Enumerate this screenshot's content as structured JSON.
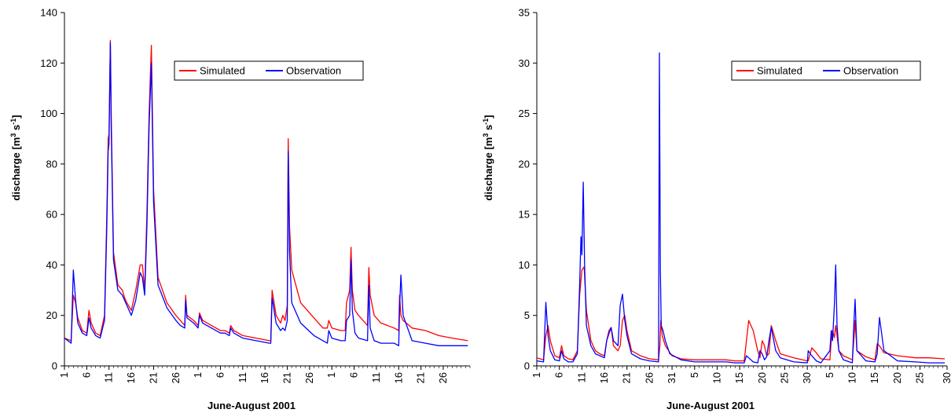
{
  "colors": {
    "simulated": "#ff0000",
    "observation": "#0000ff",
    "axis": "#000000"
  },
  "chart_data": [
    {
      "type": "line",
      "xlabel": "June-August 2001",
      "ylabel": "discharge [m³ s⁻¹]",
      "ylabel_parts": {
        "main": "discharge [m",
        "sup1": "3",
        "mid": " s",
        "sup2": "-1",
        "end": "]"
      },
      "ylim": [
        0,
        140
      ],
      "yticks": [
        0,
        20,
        40,
        60,
        80,
        100,
        120,
        140
      ],
      "xlim": [
        1,
        92
      ],
      "xtick_positions": [
        1,
        6,
        11,
        16,
        21,
        26,
        31,
        36,
        41,
        46,
        51,
        56,
        61,
        66,
        71,
        76,
        81,
        86
      ],
      "xtick_labels": [
        "1",
        "6",
        "11",
        "16",
        "21",
        "26",
        "1",
        "6",
        "11",
        "16",
        "21",
        "26",
        "1",
        "6",
        "11",
        "16",
        "21",
        "26"
      ],
      "legend": {
        "position": "top-right-center",
        "entries": [
          "Simulated",
          "Observation"
        ]
      },
      "grid": false,
      "series": [
        {
          "name": "Simulated",
          "color": "#ff0000",
          "x": [
            1,
            2.5,
            3,
            3.5,
            4,
            5,
            6,
            6.5,
            7,
            8,
            9,
            10,
            10.5,
            10.8,
            11,
            11.3,
            11.5,
            12,
            13,
            14,
            14.5,
            15,
            16,
            17,
            18,
            18.5,
            19,
            19.5,
            20,
            20.5,
            21,
            22,
            24,
            26,
            27,
            28,
            28.2,
            28.5,
            30,
            31,
            31.3,
            32,
            34,
            36,
            37,
            38,
            38.3,
            39,
            41,
            44,
            47,
            47.3,
            47.6,
            48.5,
            49.5,
            50,
            50.5,
            51,
            51.2,
            51.5,
            52,
            54,
            57,
            59,
            60,
            60.3,
            61,
            63,
            64,
            64.3,
            65,
            65.3,
            65.6,
            66.2,
            67,
            69,
            69.3,
            69.6,
            70.5,
            72,
            75,
            76,
            76.2,
            76.5,
            77,
            79,
            82,
            85,
            88,
            91.5
          ],
          "y": [
            11,
            10,
            28,
            25,
            19,
            14,
            13,
            22,
            17,
            13,
            12,
            20,
            60,
            90,
            92,
            129,
            100,
            45,
            32,
            30,
            27,
            25,
            22,
            30,
            40,
            40,
            30,
            60,
            100,
            127,
            70,
            35,
            25,
            20,
            18,
            16,
            28,
            20,
            18,
            16,
            21,
            18,
            16,
            14,
            14,
            13,
            16,
            14,
            12,
            11,
            10,
            10,
            30,
            20,
            17,
            20,
            18,
            24,
            90,
            55,
            38,
            25,
            19,
            15,
            15,
            18,
            15,
            14,
            14,
            25,
            30,
            47,
            30,
            22,
            20,
            16,
            39,
            28,
            20,
            17,
            15,
            14,
            28,
            20,
            18,
            15,
            14,
            12,
            11,
            10
          ]
        },
        {
          "name": "Observation",
          "color": "#0000ff",
          "x": [
            1,
            2.5,
            3,
            3.5,
            4,
            5,
            6,
            6.5,
            7,
            8,
            9,
            10,
            10.5,
            10.8,
            11,
            11.3,
            11.5,
            12,
            13,
            14,
            14.5,
            15,
            16,
            17,
            18,
            18.5,
            19,
            19.5,
            20,
            20.5,
            21,
            22,
            24,
            26,
            27,
            28,
            28.2,
            28.5,
            30,
            31,
            31.3,
            32,
            34,
            36,
            37,
            38,
            38.3,
            39,
            41,
            44,
            47,
            47.3,
            47.6,
            48.5,
            49.5,
            50,
            50.5,
            51,
            51.2,
            51.5,
            52,
            54,
            57,
            59,
            60,
            60.3,
            61,
            63,
            64,
            64.3,
            65,
            65.3,
            65.6,
            66.2,
            67,
            69,
            69.3,
            69.6,
            70.5,
            72,
            75,
            76,
            76.2,
            76.5,
            77,
            79,
            82,
            85,
            88,
            91.5
          ],
          "y": [
            11,
            9,
            38,
            26,
            17,
            13,
            12,
            19,
            15,
            12,
            11,
            18,
            55,
            85,
            88,
            128,
            95,
            42,
            30,
            28,
            26,
            24,
            20,
            26,
            37,
            35,
            28,
            55,
            95,
            120,
            65,
            32,
            23,
            18,
            16,
            15,
            26,
            19,
            17,
            15,
            20,
            17,
            15,
            13,
            13,
            12,
            15,
            13,
            11,
            10,
            9,
            9,
            27,
            17,
            14,
            15,
            14,
            18,
            85,
            45,
            25,
            17,
            12,
            10,
            9,
            14,
            11,
            10,
            10,
            18,
            20,
            42,
            22,
            13,
            11,
            10,
            32,
            15,
            10,
            9,
            9,
            8,
            23,
            36,
            20,
            10,
            9,
            8,
            8,
            8
          ]
        }
      ]
    },
    {
      "type": "line",
      "xlabel": "June-August 2001",
      "ylabel": "discharge [m³ s⁻¹]",
      "ylabel_parts": {
        "main": "discharge [m",
        "sup1": "3",
        "mid": " s",
        "sup2": "-1",
        "end": "]"
      },
      "ylim": [
        0,
        35
      ],
      "yticks": [
        0,
        5,
        10,
        15,
        20,
        25,
        30,
        35
      ],
      "xlim": [
        1,
        92
      ],
      "xtick_positions": [
        1,
        6,
        11,
        16,
        21,
        26,
        31,
        36,
        41,
        46,
        51,
        56,
        61,
        66,
        71,
        76,
        81,
        86,
        92
      ],
      "xtick_labels": [
        "1",
        "6",
        "11",
        "16",
        "21",
        "26",
        "31",
        "5",
        "10",
        "15",
        "20",
        "25",
        "30",
        "5",
        "10",
        "15",
        "20",
        "25",
        "30"
      ],
      "legend": {
        "position": "top-right",
        "entries": [
          "Simulated",
          "Observation"
        ]
      },
      "grid": false,
      "series": [
        {
          "name": "Simulated",
          "color": "#ff0000",
          "x": [
            1,
            2.5,
            3,
            3.5,
            4,
            5,
            6,
            6.5,
            7,
            8,
            9,
            10,
            10.5,
            11,
            11.5,
            12,
            13,
            14,
            15,
            16,
            16.5,
            17,
            17.5,
            18,
            19,
            19.5,
            20,
            20.5,
            21,
            22,
            24,
            26,
            28,
            28.3,
            28.5,
            28.8,
            29.5,
            31,
            33,
            36,
            40,
            43,
            45,
            47,
            47.5,
            48,
            49,
            50,
            50.5,
            51,
            51.5,
            52,
            52.5,
            53,
            54,
            55,
            58,
            61,
            61.2,
            62,
            63,
            64,
            66,
            66.3,
            66.6,
            67,
            67.3,
            67.6,
            68,
            69,
            71,
            71.3,
            71.6,
            72,
            74,
            76,
            76.5,
            77,
            78,
            81,
            85,
            88,
            91.5
          ],
          "y": [
            0.8,
            0.6,
            3,
            4,
            2.5,
            1,
            0.8,
            2,
            1,
            0.7,
            0.6,
            1.5,
            7,
            9.5,
            9.8,
            5.5,
            2.5,
            1.5,
            1.2,
            1,
            2.5,
            3.5,
            3.8,
            2,
            1.5,
            2,
            4.5,
            5,
            3.5,
            1.5,
            1,
            0.7,
            0.6,
            2,
            4.5,
            3,
            2,
            1,
            0.7,
            0.6,
            0.6,
            0.6,
            0.5,
            0.5,
            2.5,
            4.5,
            3.5,
            1.5,
            0.8,
            2.5,
            2,
            1,
            1.2,
            4,
            2.5,
            1.2,
            0.8,
            0.5,
            0.5,
            1.8,
            1.3,
            0.7,
            0.6,
            2.5,
            3.5,
            2.8,
            4,
            3,
            1.5,
            1,
            0.6,
            2.5,
            4.5,
            1.5,
            0.9,
            0.6,
            2.2,
            2,
            1.3,
            1,
            0.8,
            0.8,
            0.7
          ]
        },
        {
          "name": "Observation",
          "color": "#0000ff",
          "x": [
            1,
            2.5,
            3,
            3.5,
            4,
            5,
            6,
            6.5,
            7,
            8,
            9,
            10,
            10.5,
            10.8,
            11,
            11.3,
            11.6,
            12,
            13,
            14,
            15,
            16,
            16.5,
            17,
            17.5,
            18,
            19,
            19.5,
            20,
            20.5,
            21,
            22,
            24,
            26,
            28,
            28.2,
            28.4,
            28.6,
            29,
            29.5,
            30.5,
            33,
            36,
            40,
            43,
            45,
            47,
            47.5,
            48,
            49,
            50,
            50.5,
            51,
            51.5,
            52,
            52.5,
            53,
            54,
            55,
            58,
            61,
            61.2,
            62,
            63,
            64,
            66,
            66.3,
            66.6,
            67,
            67.3,
            67.6,
            68,
            69,
            71,
            71.3,
            71.6,
            72,
            74,
            76,
            76.5,
            77,
            78,
            81,
            85,
            88,
            91.5
          ],
          "y": [
            0.5,
            0.4,
            6.3,
            3,
            1.5,
            0.6,
            0.5,
            1.5,
            0.7,
            0.4,
            0.4,
            1.2,
            8,
            12.8,
            11,
            18.2,
            10,
            4,
            2,
            1.2,
            1,
            0.8,
            2.5,
            3.2,
            3.8,
            2.5,
            2,
            6,
            7.1,
            4.5,
            3,
            1.2,
            0.7,
            0.5,
            0.4,
            31,
            9.5,
            4,
            3.5,
            2.5,
            1.2,
            0.6,
            0.4,
            0.4,
            0.4,
            0.3,
            0.3,
            1,
            0.8,
            0.4,
            0.3,
            1.5,
            1.2,
            0.6,
            0.9,
            2.5,
            3.8,
            1.5,
            0.8,
            0.4,
            0.3,
            1.5,
            1,
            0.5,
            0.3,
            1.5,
            3.5,
            2.5,
            6,
            10,
            4,
            1.5,
            0.6,
            0.3,
            4,
            6.6,
            1.5,
            0.5,
            0.4,
            1.2,
            4.8,
            1.5,
            0.5,
            0.4,
            0.3,
            0.3
          ]
        }
      ]
    }
  ]
}
